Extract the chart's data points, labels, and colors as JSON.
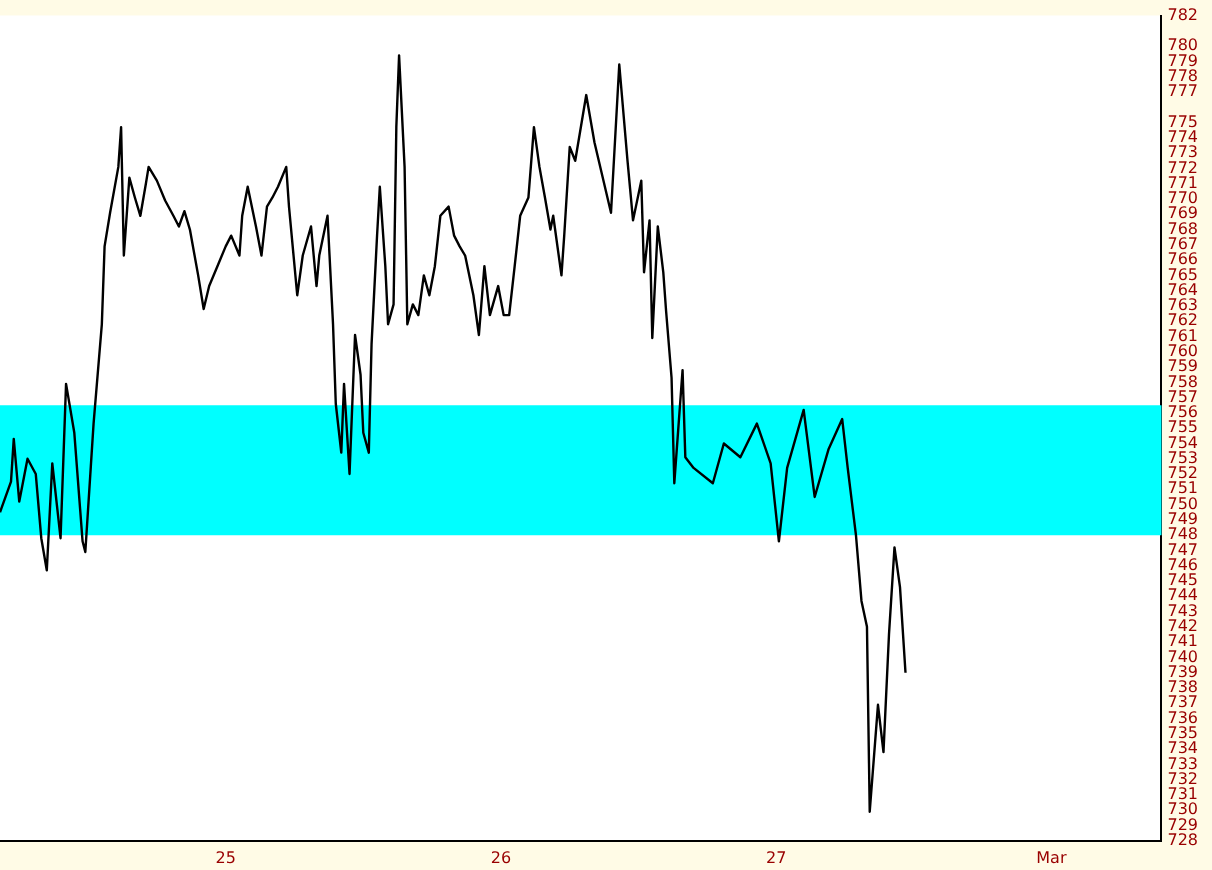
{
  "chart_data": {
    "type": "line",
    "x": [
      24.18,
      24.22,
      24.23,
      24.25,
      24.28,
      24.31,
      24.33,
      24.35,
      24.37,
      24.4,
      24.42,
      24.45,
      24.48,
      24.49,
      24.51,
      24.52,
      24.55,
      24.56,
      24.58,
      24.61,
      24.62,
      24.63,
      24.65,
      24.67,
      24.69,
      24.71,
      24.72,
      24.75,
      24.78,
      24.81,
      24.83,
      24.85,
      24.87,
      24.9,
      24.92,
      24.94,
      24.97,
      25.0,
      25.02,
      25.05,
      25.06,
      25.08,
      25.11,
      25.13,
      25.15,
      25.17,
      25.19,
      25.22,
      25.23,
      25.26,
      25.28,
      25.31,
      25.33,
      25.34,
      25.37,
      25.39,
      25.4,
      25.42,
      25.43,
      25.45,
      25.47,
      25.49,
      25.5,
      25.52,
      25.53,
      25.55,
      25.56,
      25.58,
      25.59,
      25.61,
      25.62,
      25.63,
      25.65,
      25.66,
      25.68,
      25.7,
      25.72,
      25.74,
      25.76,
      25.78,
      25.81,
      25.83,
      25.85,
      25.87,
      25.9,
      25.92,
      25.94,
      25.96,
      25.99,
      26.01,
      26.03,
      26.05,
      26.07,
      26.1,
      26.12,
      26.14,
      26.16,
      26.18,
      26.19,
      26.22,
      26.23,
      26.25,
      26.27,
      26.31,
      26.34,
      26.4,
      26.43,
      26.46,
      26.48,
      26.51,
      26.52,
      26.54,
      26.55,
      26.57,
      26.59,
      26.6,
      26.62,
      26.63,
      26.66,
      26.67,
      26.7,
      26.77,
      26.81,
      26.87,
      26.93,
      26.98,
      27.01,
      27.04,
      27.1,
      27.14,
      27.19,
      27.24,
      27.26,
      27.29,
      27.31,
      27.33,
      27.34,
      27.37,
      27.39,
      27.41,
      27.43,
      27.45,
      27.47
    ],
    "values": [
      749.5,
      751.5,
      754.3,
      750.2,
      753,
      752,
      747.8,
      745.7,
      752.7,
      747.8,
      757.9,
      754.7,
      747.6,
      746.9,
      752.5,
      755.3,
      761.8,
      766.9,
      769.1,
      772.1,
      774.7,
      766.3,
      771.4,
      770.1,
      768.9,
      771,
      772.1,
      771.2,
      769.9,
      768.9,
      768.2,
      769.2,
      768,
      765,
      762.8,
      764.3,
      765.6,
      766.9,
      767.6,
      766.3,
      768.9,
      770.8,
      768.2,
      766.3,
      769.5,
      770.1,
      770.8,
      772.1,
      769.5,
      763.7,
      766.3,
      768.2,
      764.3,
      766.3,
      768.9,
      761.8,
      756.6,
      753.4,
      757.9,
      752,
      761.1,
      758.5,
      754.7,
      753.4,
      760.5,
      767.6,
      770.8,
      765.6,
      761.8,
      763.1,
      774.7,
      779.4,
      772.1,
      761.8,
      763.1,
      762.4,
      765,
      763.7,
      765.6,
      768.9,
      769.5,
      767.6,
      766.9,
      766.3,
      763.7,
      761.1,
      765.6,
      762.4,
      764.3,
      762.4,
      762.4,
      765.6,
      768.9,
      770.1,
      774.7,
      772.1,
      770.1,
      768,
      768.9,
      765,
      767.6,
      773.4,
      772.5,
      776.8,
      773.7,
      769.1,
      778.8,
      772.5,
      768.6,
      771.2,
      765.2,
      768.6,
      760.9,
      768.2,
      765.2,
      762.7,
      758.3,
      751.4,
      758.8,
      753.1,
      752.4,
      751.4,
      754,
      753.1,
      755.3,
      752.7,
      747.6,
      752.4,
      756.2,
      750.5,
      753.6,
      755.6,
      752.4,
      748,
      743.7,
      742,
      729.9,
      736.9,
      733.8,
      741.5,
      747.2,
      744.6,
      739
    ],
    "color": "#000000",
    "marker": "none",
    "grid": false,
    "legend": false,
    "xlim": [
      24.18,
      28.4
    ],
    "xticks": [
      25,
      26,
      27,
      {
        "value": 28,
        "label": "Mar"
      }
    ],
    "ylim": [
      728,
      782
    ],
    "yticks": [
      782,
      780,
      779,
      778,
      777,
      775,
      774,
      773,
      772,
      771,
      770,
      769,
      768,
      767,
      766,
      765,
      764,
      763,
      762,
      761,
      760,
      759,
      758,
      757,
      756,
      755,
      754,
      753,
      752,
      751,
      750,
      749,
      748,
      747,
      746,
      745,
      744,
      743,
      742,
      741,
      740,
      739,
      738,
      737,
      736,
      735,
      734,
      733,
      732,
      731,
      730,
      729,
      728
    ],
    "bands": [
      {
        "axis": "y",
        "from": 748,
        "to": 756.5,
        "color": "#00ffff"
      }
    ]
  }
}
